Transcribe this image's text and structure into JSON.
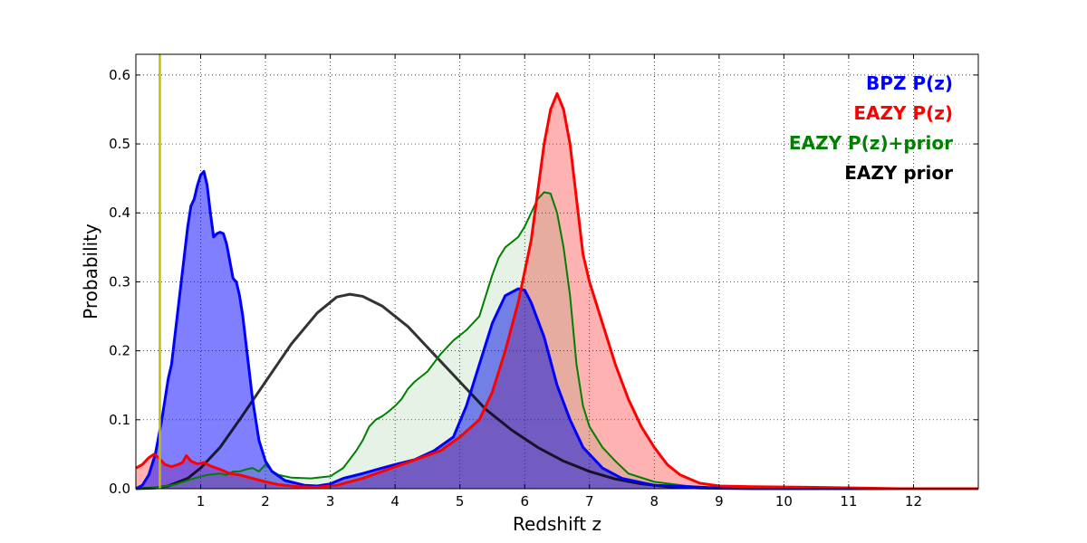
{
  "chart_data": {
    "type": "area",
    "title": "",
    "xlabel": "Redshift z",
    "ylabel": "Probability",
    "xlim": [
      0,
      13
    ],
    "ylim": [
      0,
      0.63
    ],
    "xticks": [
      1,
      2,
      3,
      4,
      5,
      6,
      7,
      8,
      9,
      10,
      11,
      12
    ],
    "xtick_labels": [
      "1",
      "2",
      "3",
      "4",
      "5",
      "6",
      "7",
      "8",
      "9",
      "10",
      "11",
      "12"
    ],
    "yticks": [
      0.0,
      0.1,
      0.2,
      0.3,
      0.4,
      0.5,
      0.6
    ],
    "ytick_labels": [
      "0.0",
      "0.1",
      "0.2",
      "0.3",
      "0.4",
      "0.5",
      "0.6"
    ],
    "grid": true,
    "legend_position": "top-right",
    "vline": {
      "x": 0.37,
      "color": "#bfbf00"
    },
    "series": [
      {
        "name": "BPZ P(z)",
        "color": "#0000ff",
        "fill": "#0000ff",
        "fill_opacity": 0.5,
        "points": [
          [
            0,
            0
          ],
          [
            0.1,
            0.005
          ],
          [
            0.2,
            0.02
          ],
          [
            0.3,
            0.05
          ],
          [
            0.4,
            0.1
          ],
          [
            0.5,
            0.16
          ],
          [
            0.55,
            0.18
          ],
          [
            0.6,
            0.22
          ],
          [
            0.7,
            0.3
          ],
          [
            0.8,
            0.38
          ],
          [
            0.85,
            0.41
          ],
          [
            0.9,
            0.42
          ],
          [
            0.95,
            0.44
          ],
          [
            1.0,
            0.455
          ],
          [
            1.05,
            0.46
          ],
          [
            1.1,
            0.44
          ],
          [
            1.15,
            0.4
          ],
          [
            1.2,
            0.365
          ],
          [
            1.25,
            0.37
          ],
          [
            1.3,
            0.372
          ],
          [
            1.35,
            0.37
          ],
          [
            1.4,
            0.355
          ],
          [
            1.45,
            0.33
          ],
          [
            1.5,
            0.305
          ],
          [
            1.55,
            0.3
          ],
          [
            1.6,
            0.28
          ],
          [
            1.65,
            0.25
          ],
          [
            1.7,
            0.21
          ],
          [
            1.8,
            0.13
          ],
          [
            1.9,
            0.07
          ],
          [
            2.0,
            0.04
          ],
          [
            2.1,
            0.025
          ],
          [
            2.3,
            0.012
          ],
          [
            2.6,
            0.005
          ],
          [
            2.8,
            0.004
          ],
          [
            3.0,
            0.007
          ],
          [
            3.2,
            0.015
          ],
          [
            3.5,
            0.022
          ],
          [
            3.8,
            0.03
          ],
          [
            4.0,
            0.035
          ],
          [
            4.3,
            0.042
          ],
          [
            4.6,
            0.055
          ],
          [
            4.9,
            0.075
          ],
          [
            5.1,
            0.12
          ],
          [
            5.3,
            0.18
          ],
          [
            5.5,
            0.24
          ],
          [
            5.7,
            0.28
          ],
          [
            5.9,
            0.29
          ],
          [
            6.0,
            0.288
          ],
          [
            6.1,
            0.27
          ],
          [
            6.3,
            0.22
          ],
          [
            6.5,
            0.15
          ],
          [
            6.7,
            0.1
          ],
          [
            6.9,
            0.06
          ],
          [
            7.2,
            0.03
          ],
          [
            7.5,
            0.015
          ],
          [
            8.0,
            0.005
          ],
          [
            9.0,
            0.001
          ],
          [
            10.0,
            0
          ],
          [
            13.0,
            0
          ]
        ]
      },
      {
        "name": "EAZY P(z)",
        "color": "#ff0000",
        "fill": "#ff0000",
        "fill_opacity": 0.3,
        "points": [
          [
            0,
            0.03
          ],
          [
            0.1,
            0.035
          ],
          [
            0.2,
            0.045
          ],
          [
            0.28,
            0.05
          ],
          [
            0.35,
            0.045
          ],
          [
            0.45,
            0.035
          ],
          [
            0.55,
            0.032
          ],
          [
            0.65,
            0.035
          ],
          [
            0.72,
            0.038
          ],
          [
            0.78,
            0.048
          ],
          [
            0.85,
            0.04
          ],
          [
            0.95,
            0.036
          ],
          [
            1.05,
            0.038
          ],
          [
            1.15,
            0.033
          ],
          [
            1.3,
            0.028
          ],
          [
            1.45,
            0.022
          ],
          [
            1.6,
            0.02
          ],
          [
            1.8,
            0.015
          ],
          [
            2.0,
            0.01
          ],
          [
            2.2,
            0.006
          ],
          [
            2.5,
            0.003
          ],
          [
            2.8,
            0.002
          ],
          [
            3.1,
            0.005
          ],
          [
            3.5,
            0.015
          ],
          [
            3.8,
            0.025
          ],
          [
            4.1,
            0.035
          ],
          [
            4.4,
            0.045
          ],
          [
            4.7,
            0.055
          ],
          [
            5.0,
            0.075
          ],
          [
            5.3,
            0.1
          ],
          [
            5.5,
            0.14
          ],
          [
            5.7,
            0.2
          ],
          [
            5.9,
            0.27
          ],
          [
            6.1,
            0.36
          ],
          [
            6.3,
            0.5
          ],
          [
            6.4,
            0.55
          ],
          [
            6.5,
            0.573
          ],
          [
            6.6,
            0.55
          ],
          [
            6.7,
            0.5
          ],
          [
            6.8,
            0.42
          ],
          [
            6.9,
            0.34
          ],
          [
            7.0,
            0.3
          ],
          [
            7.2,
            0.24
          ],
          [
            7.4,
            0.18
          ],
          [
            7.6,
            0.13
          ],
          [
            7.8,
            0.09
          ],
          [
            8.0,
            0.06
          ],
          [
            8.2,
            0.035
          ],
          [
            8.4,
            0.02
          ],
          [
            8.7,
            0.008
          ],
          [
            9.0,
            0.004
          ],
          [
            9.5,
            0.003
          ],
          [
            10.5,
            0.002
          ],
          [
            11.8,
            0.0
          ],
          [
            13.0,
            0.0
          ]
        ]
      },
      {
        "name": "EAZY P(z)+prior",
        "color": "#008000",
        "fill": "#008000",
        "fill_opacity": 0.1,
        "points": [
          [
            0,
            0
          ],
          [
            0.3,
            0.001
          ],
          [
            0.6,
            0.006
          ],
          [
            0.9,
            0.015
          ],
          [
            1.1,
            0.02
          ],
          [
            1.3,
            0.022
          ],
          [
            1.4,
            0.02
          ],
          [
            1.5,
            0.025
          ],
          [
            1.6,
            0.025
          ],
          [
            1.7,
            0.028
          ],
          [
            1.8,
            0.03
          ],
          [
            1.9,
            0.025
          ],
          [
            2.0,
            0.035
          ],
          [
            2.1,
            0.026
          ],
          [
            2.2,
            0.02
          ],
          [
            2.4,
            0.016
          ],
          [
            2.7,
            0.015
          ],
          [
            3.0,
            0.018
          ],
          [
            3.2,
            0.03
          ],
          [
            3.4,
            0.055
          ],
          [
            3.5,
            0.07
          ],
          [
            3.6,
            0.09
          ],
          [
            3.7,
            0.1
          ],
          [
            3.8,
            0.105
          ],
          [
            3.9,
            0.112
          ],
          [
            4.0,
            0.12
          ],
          [
            4.1,
            0.13
          ],
          [
            4.2,
            0.145
          ],
          [
            4.3,
            0.155
          ],
          [
            4.5,
            0.17
          ],
          [
            4.7,
            0.195
          ],
          [
            4.9,
            0.215
          ],
          [
            5.1,
            0.23
          ],
          [
            5.3,
            0.25
          ],
          [
            5.4,
            0.28
          ],
          [
            5.5,
            0.31
          ],
          [
            5.6,
            0.335
          ],
          [
            5.7,
            0.35
          ],
          [
            5.9,
            0.365
          ],
          [
            6.0,
            0.38
          ],
          [
            6.1,
            0.4
          ],
          [
            6.2,
            0.42
          ],
          [
            6.3,
            0.43
          ],
          [
            6.4,
            0.428
          ],
          [
            6.5,
            0.4
          ],
          [
            6.6,
            0.35
          ],
          [
            6.7,
            0.28
          ],
          [
            6.8,
            0.18
          ],
          [
            6.9,
            0.12
          ],
          [
            7.0,
            0.09
          ],
          [
            7.2,
            0.06
          ],
          [
            7.4,
            0.04
          ],
          [
            7.6,
            0.022
          ],
          [
            8.0,
            0.01
          ],
          [
            8.5,
            0.004
          ],
          [
            9.0,
            0.001
          ],
          [
            10.0,
            0
          ],
          [
            13.0,
            0
          ]
        ]
      },
      {
        "name": "EAZY prior",
        "color": "#000000",
        "fill": "none",
        "fill_opacity": 0,
        "points": [
          [
            0,
            0
          ],
          [
            0.3,
            0.001
          ],
          [
            0.5,
            0.004
          ],
          [
            0.8,
            0.015
          ],
          [
            1.0,
            0.03
          ],
          [
            1.3,
            0.06
          ],
          [
            1.6,
            0.1
          ],
          [
            2.0,
            0.155
          ],
          [
            2.4,
            0.21
          ],
          [
            2.8,
            0.255
          ],
          [
            3.1,
            0.278
          ],
          [
            3.3,
            0.282
          ],
          [
            3.5,
            0.279
          ],
          [
            3.8,
            0.265
          ],
          [
            4.2,
            0.235
          ],
          [
            4.6,
            0.195
          ],
          [
            5.0,
            0.155
          ],
          [
            5.4,
            0.115
          ],
          [
            5.8,
            0.085
          ],
          [
            6.2,
            0.06
          ],
          [
            6.6,
            0.04
          ],
          [
            7.0,
            0.025
          ],
          [
            7.4,
            0.014
          ],
          [
            7.8,
            0.007
          ],
          [
            8.2,
            0.003
          ],
          [
            8.7,
            0.001
          ],
          [
            9.5,
            0
          ],
          [
            13.0,
            0
          ]
        ]
      }
    ],
    "legend": [
      {
        "label": "BPZ P(z)",
        "color": "#0000ff"
      },
      {
        "label": "EAZY P(z)",
        "color": "#ff0000"
      },
      {
        "label": "EAZY P(z)+prior",
        "color": "#008000"
      },
      {
        "label": "EAZY prior",
        "color": "#000000"
      }
    ]
  }
}
